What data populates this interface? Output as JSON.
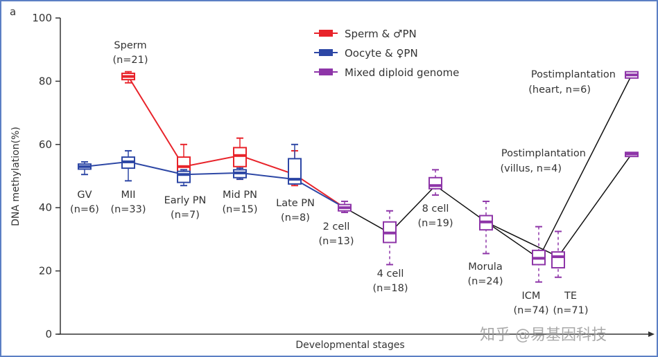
{
  "panel_label": "a",
  "watermark": "知乎 @易基因科技",
  "chart_data": {
    "type": "box",
    "title": "",
    "xlabel": "Developmental stages",
    "ylabel": "DNA methylation(%)",
    "ylim": [
      0,
      100
    ],
    "yticks": [
      0,
      20,
      40,
      60,
      80,
      100
    ],
    "grid": false,
    "legend_position": "top-center",
    "legend": [
      {
        "key": "sperm",
        "label": "Sperm & ♂PN",
        "color": "#e8232a"
      },
      {
        "key": "oocyte",
        "label": "Oocyte & ♀PN",
        "color": "#2d47a5"
      },
      {
        "key": "mixed",
        "label": "Mixed diploid genome",
        "color": "#8e35a8"
      }
    ],
    "categories": [
      {
        "key": "GV",
        "label": "GV",
        "n": "(n=6)"
      },
      {
        "key": "MII",
        "label": "MII",
        "n": "(n=33)"
      },
      {
        "key": "EarlyPN",
        "label": "Early PN",
        "n": "(n=7)"
      },
      {
        "key": "MidPN",
        "label": "Mid PN",
        "n": "(n=15)"
      },
      {
        "key": "LatePN",
        "label": "Late PN",
        "n": "(n=8)"
      },
      {
        "key": "2cell",
        "label": "2 cell",
        "n": "(n=13)"
      },
      {
        "key": "4cell",
        "label": "4 cell",
        "n": "(n=18)"
      },
      {
        "key": "8cell",
        "label": "8 cell",
        "n": "(n=19)"
      },
      {
        "key": "Morula",
        "label": "Morula",
        "n": "(n=24)"
      },
      {
        "key": "ICM",
        "label": "ICM",
        "n": "(n=74)"
      },
      {
        "key": "TE",
        "label": "TE",
        "n": "(n=71)"
      },
      {
        "key": "Post",
        "label": "Postimplantation",
        "n": ""
      }
    ],
    "extra_labels": [
      {
        "key": "sperm_label",
        "label": "Sperm",
        "n": "(n=21)"
      },
      {
        "key": "heart_label",
        "label": "Postimplantation",
        "n": "(heart, n=6)"
      },
      {
        "key": "villus_label",
        "label": "Postimplantation",
        "n": "(villus, n=4)"
      }
    ],
    "series": [
      {
        "name": "Sperm & ♂PN",
        "key": "sperm",
        "points": [
          {
            "stage": "MII",
            "median": 81.5,
            "q1": 80.5,
            "q3": 82.5,
            "low": 79.5,
            "high": 83
          },
          {
            "stage": "EarlyPN",
            "median": 53,
            "q1": 51,
            "q3": 56,
            "low": 49,
            "high": 60
          },
          {
            "stage": "MidPN",
            "median": 56.5,
            "q1": 53,
            "q3": 59,
            "low": 49,
            "high": 62
          },
          {
            "stage": "LatePN",
            "median": 50.5,
            "q1": 49,
            "q3": 55,
            "low": 47,
            "high": 58
          },
          {
            "stage": "2cell",
            "median": 40,
            "connect_only": true
          }
        ]
      },
      {
        "name": "Oocyte & ♀PN",
        "key": "oocyte",
        "points": [
          {
            "stage": "GV",
            "median": 53,
            "q1": 52.2,
            "q3": 53.8,
            "low": 50.5,
            "high": 54.5
          },
          {
            "stage": "MII",
            "median": 54.5,
            "q1": 52.5,
            "q3": 56,
            "low": 48.5,
            "high": 58
          },
          {
            "stage": "EarlyPN",
            "median": 50.5,
            "q1": 48,
            "q3": 51.5,
            "low": 47,
            "high": 52
          },
          {
            "stage": "MidPN",
            "median": 51,
            "q1": 49.5,
            "q3": 52,
            "low": 49,
            "high": 52.5
          },
          {
            "stage": "LatePN",
            "median": 49,
            "q1": 47.5,
            "q3": 55.5,
            "low": 47.5,
            "high": 60
          },
          {
            "stage": "2cell",
            "median": 40,
            "connect_only": true
          }
        ]
      },
      {
        "name": "Mixed diploid genome",
        "key": "mixed",
        "points": [
          {
            "stage": "2cell",
            "median": 40,
            "q1": 39,
            "q3": 41,
            "low": 38.5,
            "high": 42
          },
          {
            "stage": "4cell",
            "median": 32,
            "q1": 29,
            "q3": 35.5,
            "low": 22,
            "high": 39
          },
          {
            "stage": "8cell",
            "median": 47,
            "q1": 46,
            "q3": 49.5,
            "low": 44,
            "high": 52
          },
          {
            "stage": "Morula",
            "median": 35.5,
            "q1": 33,
            "q3": 37.5,
            "low": 25.5,
            "high": 42
          },
          {
            "stage": "ICM",
            "median": 24,
            "q1": 22,
            "q3": 26.5,
            "low": 16.5,
            "high": 34
          },
          {
            "stage": "TE",
            "median": 24.5,
            "q1": 21,
            "q3": 26,
            "low": 18,
            "high": 32.5
          },
          {
            "stage": "Post-heart",
            "median": 82,
            "q1": 81,
            "q3": 83,
            "low": 81,
            "high": 83
          },
          {
            "stage": "Post-villus",
            "median": 57,
            "q1": 56.2,
            "q3": 57.5,
            "low": 56.2,
            "high": 57.5
          }
        ]
      }
    ],
    "connections": [
      {
        "series": "mixed",
        "path": [
          "2cell",
          "4cell",
          "8cell",
          "Morula",
          "ICM",
          "Post-heart"
        ]
      },
      {
        "series": "mixed",
        "path": [
          "Morula",
          "TE",
          "Post-villus"
        ]
      }
    ]
  }
}
